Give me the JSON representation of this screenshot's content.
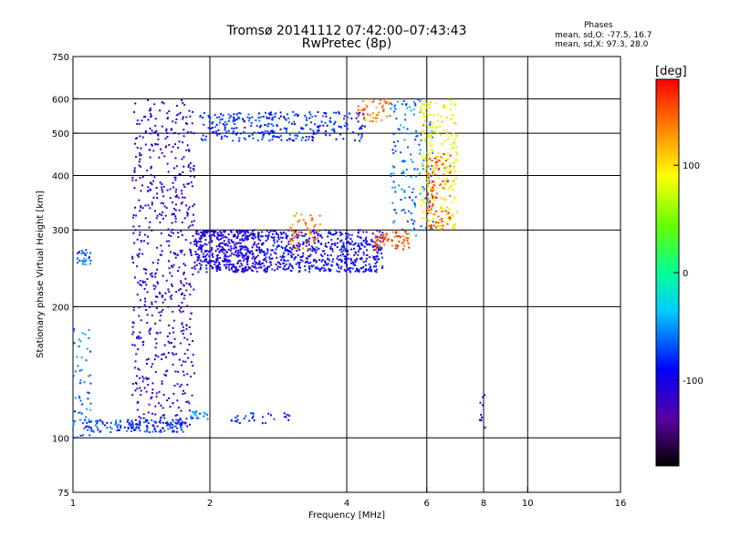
{
  "chart_data": {
    "type": "scatter",
    "title_line1": "Tromsø 20141112 07:42:00–07:43:43",
    "title_line2": "RwPretec (8p)",
    "xlabel": "Frequency [MHz]",
    "ylabel": "Stationary phase Virtual Height [km]",
    "x_scale": "log",
    "y_scale": "log",
    "xlim": [
      1,
      16
    ],
    "ylim": [
      75,
      750
    ],
    "x_ticks": [
      1,
      2,
      4,
      6,
      8,
      10,
      16
    ],
    "y_ticks": [
      75,
      100,
      200,
      300,
      400,
      500,
      600,
      750
    ],
    "grid_x": [
      2,
      4,
      6,
      8,
      10
    ],
    "grid_y": [
      100,
      200,
      300,
      400,
      500,
      600
    ],
    "phases": {
      "title": "Phases",
      "o_mode": "mean, sd,O: -77.5, 16.7",
      "x_mode": "mean, sd,X:  97.3, 28.0"
    },
    "colorbar": {
      "label": "[deg]",
      "range": [
        -180,
        180
      ],
      "ticks": [
        100,
        0,
        -100
      ]
    },
    "traces": [
      {
        "kind": "band",
        "x_range": [
          1.35,
          1.85
        ],
        "y_range": [
          105,
          600
        ],
        "phase": -110,
        "points": 650
      },
      {
        "kind": "band",
        "x_range": [
          1.85,
          2.6
        ],
        "y_range": [
          240,
          300
        ],
        "phase": -105,
        "points": 450
      },
      {
        "kind": "band",
        "x_range": [
          2.6,
          4.8
        ],
        "y_range": [
          240,
          300
        ],
        "phase": -95,
        "points": 550
      },
      {
        "kind": "band",
        "x_range": [
          3.0,
          3.5
        ],
        "y_range": [
          270,
          330
        ],
        "phase": 140,
        "points": 60
      },
      {
        "kind": "band",
        "x_range": [
          4.6,
          5.5
        ],
        "y_range": [
          270,
          300
        ],
        "phase": 150,
        "points": 70
      },
      {
        "kind": "band",
        "x_range": [
          5.0,
          6.2
        ],
        "y_range": [
          290,
          600
        ],
        "phase": -60,
        "points": 150
      },
      {
        "kind": "band",
        "x_range": [
          5.8,
          7.0
        ],
        "y_range": [
          300,
          600
        ],
        "phase": 90,
        "points": 250
      },
      {
        "kind": "band",
        "x_range": [
          6.0,
          6.8
        ],
        "y_range": [
          300,
          450
        ],
        "phase": 160,
        "points": 80
      },
      {
        "kind": "band",
        "x_range": [
          1.9,
          4.4
        ],
        "y_range": [
          480,
          560
        ],
        "phase": -80,
        "points": 300
      },
      {
        "kind": "band",
        "x_range": [
          4.2,
          5.0
        ],
        "y_range": [
          530,
          600
        ],
        "phase": 140,
        "points": 50
      },
      {
        "kind": "band",
        "x_range": [
          1.05,
          1.75
        ],
        "y_range": [
          103,
          110
        ],
        "phase": -75,
        "points": 140
      },
      {
        "kind": "band",
        "x_range": [
          1.0,
          1.1
        ],
        "y_range": [
          100,
          180
        ],
        "phase": -60,
        "points": 60
      },
      {
        "kind": "band",
        "x_range": [
          1.02,
          1.1
        ],
        "y_range": [
          250,
          270
        ],
        "phase": -60,
        "points": 30
      },
      {
        "kind": "band",
        "x_range": [
          2.2,
          3.0
        ],
        "y_range": [
          108,
          114
        ],
        "phase": -85,
        "points": 30
      },
      {
        "kind": "band",
        "x_range": [
          1.8,
          2.0
        ],
        "y_range": [
          110,
          115
        ],
        "phase": -50,
        "points": 20
      },
      {
        "kind": "band",
        "x_range": [
          7.8,
          8.1
        ],
        "y_range": [
          100,
          130
        ],
        "phase": -100,
        "points": 10
      }
    ]
  }
}
